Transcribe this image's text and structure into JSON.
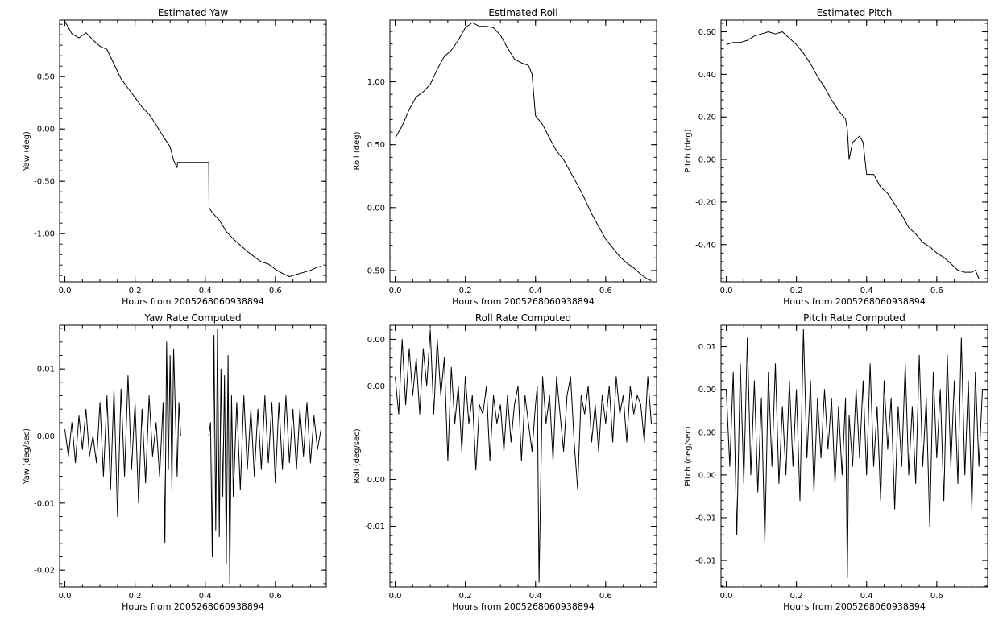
{
  "chart_data": [
    {
      "type": "line",
      "title": "Estimated Yaw",
      "xlabel": "Hours from 2005268060938894",
      "ylabel": "Yaw (deg)",
      "xlim": [
        -0.015,
        0.745
      ],
      "ylim": [
        -1.46,
        1.04
      ],
      "xticks": [
        "0.0",
        "0.2",
        "0.4",
        "0.6"
      ],
      "xtick_values": [
        0.0,
        0.2,
        0.4,
        0.6
      ],
      "yticks": [
        "0.50",
        "0.00",
        "-0.50",
        "-1.00"
      ],
      "ytick_values": [
        0.5,
        0.0,
        -0.5,
        -1.0
      ],
      "series": [
        {
          "x": [
            0.0,
            0.02,
            0.04,
            0.06,
            0.08,
            0.1,
            0.12,
            0.14,
            0.16,
            0.18,
            0.2,
            0.22,
            0.24,
            0.26,
            0.28,
            0.3,
            0.31,
            0.32,
            0.321,
            0.41,
            0.411,
            0.42,
            0.44,
            0.46,
            0.48,
            0.5,
            0.52,
            0.54,
            0.56,
            0.58,
            0.6,
            0.62,
            0.64,
            0.66,
            0.68,
            0.7,
            0.72,
            0.73
          ],
          "y": [
            1.03,
            0.91,
            0.87,
            0.92,
            0.85,
            0.79,
            0.76,
            0.62,
            0.48,
            0.39,
            0.3,
            0.21,
            0.14,
            0.04,
            -0.07,
            -0.17,
            -0.3,
            -0.37,
            -0.32,
            -0.32,
            -0.75,
            -0.8,
            -0.87,
            -0.98,
            -1.05,
            -1.11,
            -1.17,
            -1.22,
            -1.27,
            -1.29,
            -1.34,
            -1.38,
            -1.41,
            -1.39,
            -1.37,
            -1.35,
            -1.32,
            -1.31
          ]
        }
      ]
    },
    {
      "type": "line",
      "title": "Estimated Roll",
      "xlabel": "Hours from 2005268060938894",
      "ylabel": "Roll (deg)",
      "xlim": [
        -0.015,
        0.745
      ],
      "ylim": [
        -0.59,
        1.49
      ],
      "xticks": [
        "0.0",
        "0.2",
        "0.4",
        "0.6"
      ],
      "xtick_values": [
        0.0,
        0.2,
        0.4,
        0.6
      ],
      "yticks": [
        "1.00",
        "0.50",
        "0.00",
        "-0.50"
      ],
      "ytick_values": [
        1.0,
        0.5,
        0.0,
        -0.5
      ],
      "series": [
        {
          "x": [
            0.0,
            0.02,
            0.04,
            0.06,
            0.08,
            0.1,
            0.12,
            0.14,
            0.16,
            0.18,
            0.2,
            0.22,
            0.24,
            0.26,
            0.28,
            0.3,
            0.32,
            0.34,
            0.36,
            0.38,
            0.39,
            0.4,
            0.42,
            0.44,
            0.46,
            0.48,
            0.5,
            0.52,
            0.54,
            0.56,
            0.58,
            0.6,
            0.62,
            0.64,
            0.66,
            0.68,
            0.7,
            0.72,
            0.73
          ],
          "y": [
            0.55,
            0.65,
            0.78,
            0.88,
            0.92,
            0.98,
            1.1,
            1.2,
            1.25,
            1.33,
            1.43,
            1.47,
            1.44,
            1.44,
            1.43,
            1.37,
            1.27,
            1.18,
            1.15,
            1.13,
            1.06,
            0.73,
            0.66,
            0.55,
            0.45,
            0.38,
            0.28,
            0.18,
            0.07,
            -0.05,
            -0.15,
            -0.25,
            -0.32,
            -0.39,
            -0.44,
            -0.48,
            -0.53,
            -0.57,
            -0.58
          ]
        }
      ]
    },
    {
      "type": "line",
      "title": "Estimated Pitch",
      "xlabel": "Hours from 2005268060938894",
      "ylabel": "Pitch (deg)",
      "xlim": [
        -0.015,
        0.745
      ],
      "ylim": [
        -0.575,
        0.655
      ],
      "xticks": [
        "0.0",
        "0.2",
        "0.4",
        "0.6"
      ],
      "xtick_values": [
        0.0,
        0.2,
        0.4,
        0.6
      ],
      "yticks": [
        "0.60",
        "0.40",
        "0.20",
        "0.00",
        "-0.20",
        "-0.40"
      ],
      "ytick_values": [
        0.6,
        0.4,
        0.2,
        0.0,
        -0.2,
        -0.4
      ],
      "series": [
        {
          "x": [
            0.0,
            0.02,
            0.04,
            0.06,
            0.08,
            0.1,
            0.12,
            0.14,
            0.16,
            0.18,
            0.2,
            0.22,
            0.24,
            0.26,
            0.28,
            0.3,
            0.32,
            0.34,
            0.345,
            0.35,
            0.36,
            0.38,
            0.39,
            0.4,
            0.42,
            0.44,
            0.46,
            0.48,
            0.5,
            0.52,
            0.54,
            0.56,
            0.58,
            0.6,
            0.62,
            0.64,
            0.66,
            0.68,
            0.7,
            0.71,
            0.72
          ],
          "y": [
            0.54,
            0.55,
            0.55,
            0.56,
            0.58,
            0.59,
            0.6,
            0.59,
            0.6,
            0.57,
            0.54,
            0.5,
            0.45,
            0.39,
            0.34,
            0.28,
            0.23,
            0.19,
            0.14,
            0.0,
            0.08,
            0.11,
            0.08,
            -0.07,
            -0.07,
            -0.13,
            -0.16,
            -0.21,
            -0.26,
            -0.32,
            -0.35,
            -0.39,
            -0.41,
            -0.44,
            -0.46,
            -0.49,
            -0.52,
            -0.53,
            -0.53,
            -0.52,
            -0.56
          ]
        }
      ]
    },
    {
      "type": "line",
      "title": "Yaw Rate Computed",
      "xlabel": "Hours from 2005268060938894",
      "ylabel": "Yaw (deg/sec)",
      "xlim": [
        -0.015,
        0.745
      ],
      "ylim": [
        -0.0225,
        0.0165
      ],
      "xticks": [
        "0.0",
        "0.2",
        "0.4",
        "0.6"
      ],
      "xtick_values": [
        0.0,
        0.2,
        0.4,
        0.6
      ],
      "yticks": [
        "0.01",
        "0.00",
        "-0.01",
        "-0.02"
      ],
      "ytick_values": [
        0.01,
        0.0,
        -0.01,
        -0.02
      ],
      "series": [
        {
          "x": [
            0.0,
            0.01,
            0.02,
            0.03,
            0.04,
            0.05,
            0.06,
            0.07,
            0.08,
            0.09,
            0.1,
            0.11,
            0.12,
            0.13,
            0.14,
            0.15,
            0.16,
            0.17,
            0.18,
            0.19,
            0.2,
            0.21,
            0.22,
            0.23,
            0.24,
            0.25,
            0.26,
            0.27,
            0.28,
            0.285,
            0.29,
            0.295,
            0.3,
            0.305,
            0.31,
            0.32,
            0.325,
            0.33,
            0.41,
            0.415,
            0.42,
            0.425,
            0.43,
            0.435,
            0.44,
            0.445,
            0.45,
            0.455,
            0.46,
            0.465,
            0.47,
            0.475,
            0.48,
            0.49,
            0.5,
            0.51,
            0.52,
            0.53,
            0.54,
            0.55,
            0.56,
            0.57,
            0.58,
            0.59,
            0.6,
            0.61,
            0.62,
            0.63,
            0.64,
            0.65,
            0.66,
            0.67,
            0.68,
            0.69,
            0.7,
            0.71,
            0.72,
            0.73
          ],
          "y": [
            0.001,
            -0.003,
            0.002,
            -0.004,
            0.003,
            -0.002,
            0.004,
            -0.003,
            0.0,
            -0.004,
            0.005,
            -0.006,
            0.006,
            -0.008,
            0.007,
            -0.012,
            0.007,
            -0.006,
            0.009,
            -0.005,
            0.005,
            -0.01,
            0.004,
            -0.007,
            0.006,
            -0.003,
            0.002,
            -0.006,
            0.005,
            -0.016,
            0.014,
            -0.005,
            0.012,
            -0.008,
            0.013,
            -0.006,
            0.005,
            0.0,
            0.0,
            0.002,
            -0.018,
            0.015,
            -0.014,
            0.016,
            -0.015,
            0.01,
            -0.009,
            0.009,
            -0.019,
            0.012,
            -0.022,
            0.006,
            -0.009,
            0.005,
            -0.008,
            0.006,
            -0.005,
            0.004,
            -0.006,
            0.004,
            -0.005,
            0.006,
            -0.004,
            0.005,
            -0.007,
            0.005,
            -0.005,
            0.006,
            -0.004,
            0.004,
            -0.005,
            0.004,
            -0.003,
            0.005,
            -0.004,
            0.003,
            -0.002,
            0.001
          ]
        }
      ]
    },
    {
      "type": "line",
      "title": "Roll Rate Computed",
      "xlabel": "Hours from 2005268060938894",
      "ylabel": "Roll (deg/sec)",
      "xlim": [
        -0.015,
        0.745
      ],
      "ylim": [
        -0.0165,
        0.0115
      ],
      "xticks": [
        "0.0",
        "0.2",
        "0.4",
        "0.6"
      ],
      "xtick_values": [
        0.0,
        0.2,
        0.4,
        0.6
      ],
      "yticks": [
        "0.00",
        "0.00",
        "0.00",
        "-0.01"
      ],
      "ytick_values": [
        0.01,
        0.005,
        -0.005,
        -0.01
      ],
      "series": [
        {
          "x": [
            0.0,
            0.01,
            0.02,
            0.03,
            0.04,
            0.05,
            0.06,
            0.07,
            0.08,
            0.09,
            0.1,
            0.11,
            0.12,
            0.13,
            0.14,
            0.15,
            0.16,
            0.17,
            0.18,
            0.19,
            0.2,
            0.21,
            0.22,
            0.23,
            0.24,
            0.25,
            0.26,
            0.27,
            0.28,
            0.29,
            0.3,
            0.31,
            0.32,
            0.33,
            0.34,
            0.35,
            0.36,
            0.37,
            0.38,
            0.39,
            0.4,
            0.405,
            0.41,
            0.42,
            0.43,
            0.44,
            0.45,
            0.46,
            0.47,
            0.48,
            0.49,
            0.5,
            0.51,
            0.52,
            0.53,
            0.54,
            0.55,
            0.56,
            0.57,
            0.58,
            0.59,
            0.6,
            0.61,
            0.62,
            0.63,
            0.64,
            0.65,
            0.66,
            0.67,
            0.68,
            0.69,
            0.7,
            0.71,
            0.72,
            0.73
          ],
          "y": [
            0.006,
            0.002,
            0.01,
            0.003,
            0.009,
            0.004,
            0.008,
            0.002,
            0.009,
            0.005,
            0.011,
            0.002,
            0.01,
            0.004,
            0.008,
            -0.003,
            0.007,
            0.001,
            0.005,
            -0.002,
            0.006,
            0.001,
            0.004,
            -0.004,
            0.003,
            0.002,
            0.005,
            -0.003,
            0.004,
            0.001,
            0.003,
            -0.002,
            0.004,
            -0.001,
            0.003,
            0.005,
            -0.003,
            0.004,
            0.001,
            -0.002,
            0.003,
            0.005,
            -0.016,
            0.006,
            0.001,
            0.004,
            -0.003,
            0.006,
            0.002,
            -0.002,
            0.004,
            0.006,
            -0.001,
            -0.006,
            0.004,
            0.002,
            0.005,
            -0.001,
            0.003,
            -0.002,
            0.004,
            0.001,
            0.005,
            -0.001,
            0.006,
            0.002,
            0.004,
            -0.001,
            0.005,
            0.002,
            0.004,
            0.003,
            -0.001,
            0.006,
            0.001
          ]
        }
      ]
    },
    {
      "type": "line",
      "title": "Pitch Rate Computed",
      "xlabel": "Hours from 2005268060938894",
      "ylabel": "Pitch (deg/sec)",
      "xlim": [
        -0.015,
        0.745
      ],
      "ylim": [
        -0.0181,
        0.0125
      ],
      "xticks": [
        "0.0",
        "0.2",
        "0.4",
        "0.6"
      ],
      "xtick_values": [
        0.0,
        0.2,
        0.4,
        0.6
      ],
      "yticks": [
        "0.01",
        "0.00",
        "0.00",
        "0.00",
        "-0.01",
        "-0.01"
      ],
      "ytick_values": [
        0.01,
        0.005,
        0.0,
        -0.005,
        -0.01,
        -0.015
      ],
      "series": [
        {
          "x": [
            0.0,
            0.01,
            0.02,
            0.03,
            0.04,
            0.05,
            0.06,
            0.07,
            0.08,
            0.09,
            0.1,
            0.11,
            0.12,
            0.13,
            0.14,
            0.15,
            0.16,
            0.17,
            0.18,
            0.19,
            0.2,
            0.21,
            0.22,
            0.23,
            0.24,
            0.25,
            0.26,
            0.27,
            0.28,
            0.29,
            0.3,
            0.31,
            0.32,
            0.33,
            0.34,
            0.345,
            0.35,
            0.36,
            0.37,
            0.38,
            0.39,
            0.4,
            0.41,
            0.42,
            0.43,
            0.44,
            0.45,
            0.46,
            0.47,
            0.48,
            0.49,
            0.5,
            0.51,
            0.52,
            0.53,
            0.54,
            0.55,
            0.56,
            0.57,
            0.58,
            0.59,
            0.6,
            0.61,
            0.62,
            0.63,
            0.64,
            0.65,
            0.66,
            0.67,
            0.68,
            0.69,
            0.7,
            0.71,
            0.72,
            0.73
          ],
          "y": [
            0.005,
            -0.004,
            0.007,
            -0.012,
            0.008,
            -0.006,
            0.011,
            -0.005,
            0.006,
            -0.007,
            0.004,
            -0.013,
            0.007,
            -0.004,
            0.008,
            -0.006,
            0.003,
            -0.005,
            0.006,
            -0.004,
            0.005,
            -0.008,
            0.012,
            -0.003,
            0.006,
            -0.007,
            0.004,
            -0.003,
            0.005,
            -0.002,
            0.004,
            -0.006,
            0.003,
            -0.005,
            0.004,
            -0.017,
            0.002,
            -0.004,
            0.005,
            -0.003,
            0.006,
            -0.005,
            0.008,
            -0.004,
            0.003,
            -0.008,
            0.006,
            -0.002,
            0.004,
            -0.009,
            0.003,
            -0.004,
            0.008,
            -0.005,
            0.003,
            -0.006,
            0.009,
            -0.004,
            0.004,
            -0.011,
            0.007,
            -0.003,
            0.005,
            -0.008,
            0.009,
            -0.004,
            0.006,
            -0.006,
            0.011,
            -0.005,
            0.006,
            -0.009,
            0.007,
            -0.004,
            0.005
          ]
        }
      ]
    }
  ]
}
